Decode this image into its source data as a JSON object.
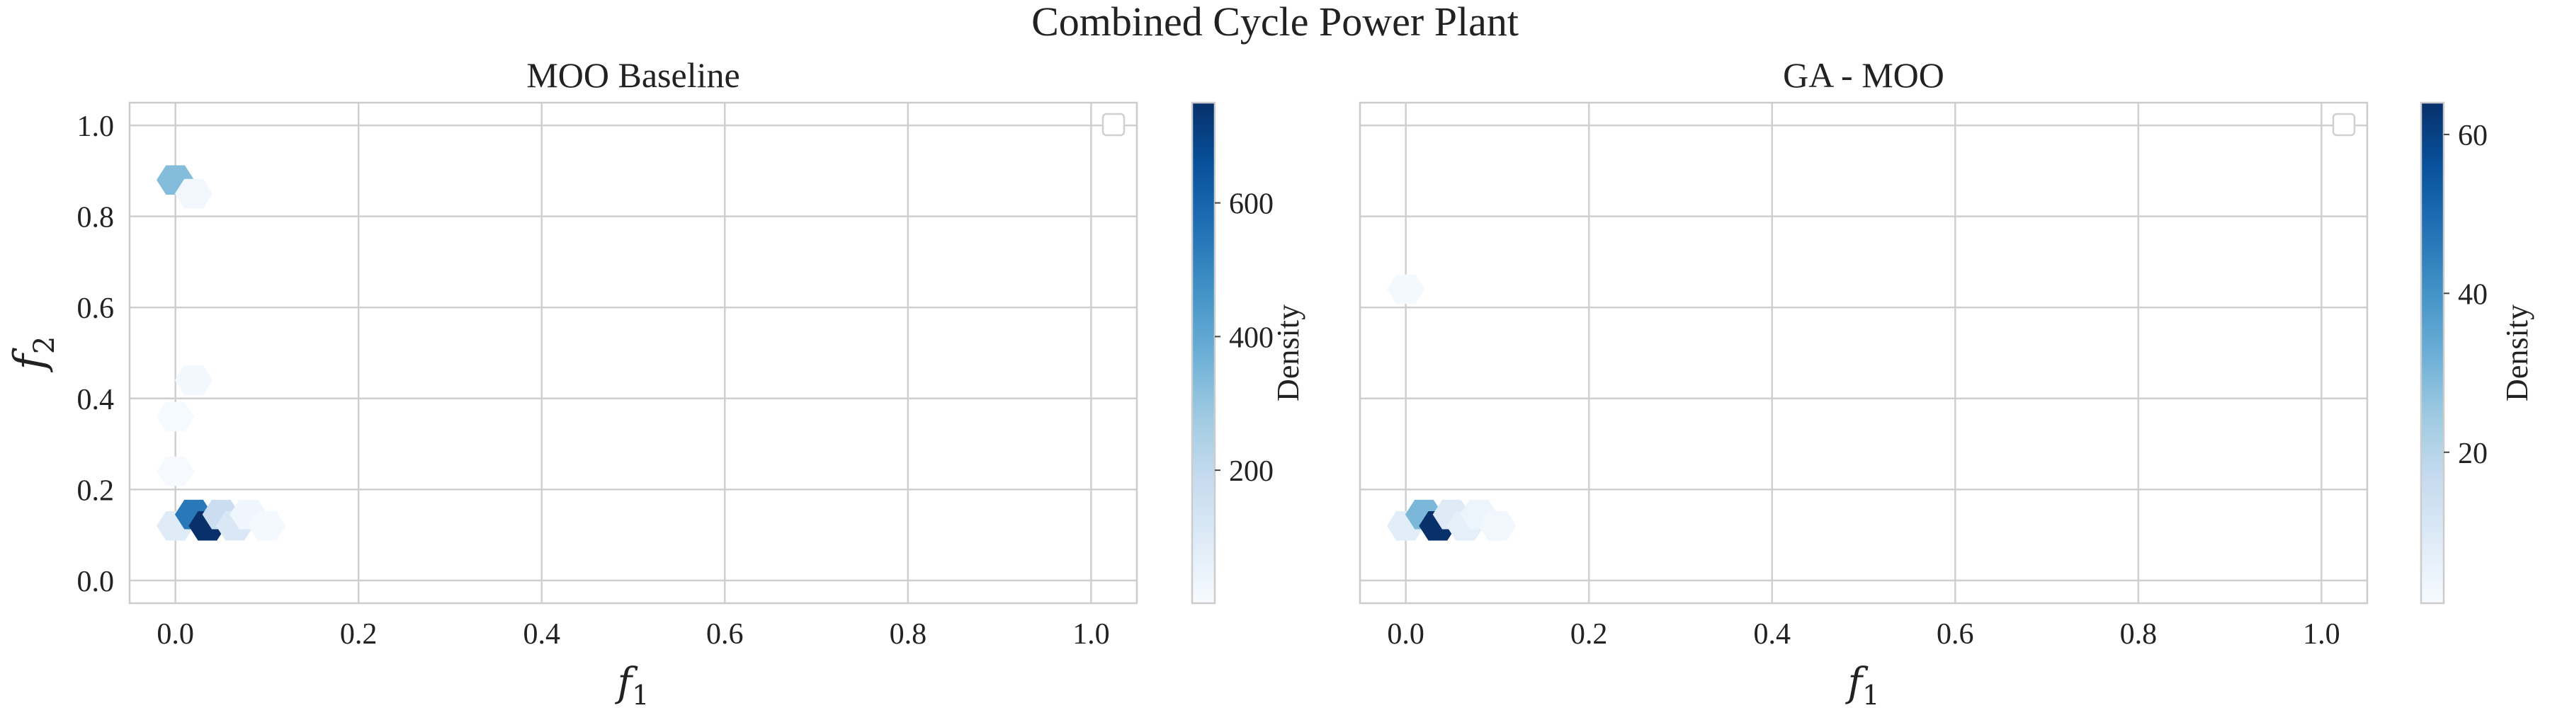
{
  "figure": {
    "suptitle": "Combined Cycle Power Plant"
  },
  "chart_data": [
    {
      "type": "hexbin",
      "title": "MOO Baseline",
      "xlabel": "f1",
      "ylabel": "f2",
      "xlim": [
        -0.05,
        1.05
      ],
      "ylim": [
        -0.05,
        1.05
      ],
      "xticks": [
        "0.0",
        "0.2",
        "0.4",
        "0.6",
        "0.8",
        "1.0"
      ],
      "yticks": [
        "0.0",
        "0.2",
        "0.4",
        "0.6",
        "0.8",
        "1.0"
      ],
      "grid": true,
      "legend": "top-right (empty)",
      "colormap": "Blues",
      "colorbar": {
        "label": "Density",
        "range": [
          1,
          750
        ],
        "ticks": [
          "200",
          "400",
          "600"
        ]
      },
      "bins": [
        {
          "x": 0.0,
          "y": 0.88,
          "count": 330
        },
        {
          "x": 0.02,
          "y": 0.85,
          "count": 25
        },
        {
          "x": 0.02,
          "y": 0.44,
          "count": 20
        },
        {
          "x": 0.0,
          "y": 0.36,
          "count": 8
        },
        {
          "x": 0.0,
          "y": 0.24,
          "count": 6
        },
        {
          "x": 0.0,
          "y": 0.12,
          "count": 90
        },
        {
          "x": 0.02,
          "y": 0.145,
          "count": 540
        },
        {
          "x": 0.035,
          "y": 0.12,
          "count": 750
        },
        {
          "x": 0.05,
          "y": 0.145,
          "count": 170
        },
        {
          "x": 0.065,
          "y": 0.12,
          "count": 110
        },
        {
          "x": 0.08,
          "y": 0.145,
          "count": 30
        },
        {
          "x": 0.1,
          "y": 0.12,
          "count": 15
        }
      ]
    },
    {
      "type": "hexbin",
      "title": "GA - MOO",
      "xlabel": "f1",
      "xlim": [
        -0.05,
        1.05
      ],
      "ylim": [
        -0.05,
        1.05
      ],
      "xticks": [
        "0.0",
        "0.2",
        "0.4",
        "0.6",
        "0.8",
        "1.0"
      ],
      "grid": true,
      "legend": "top-right (empty)",
      "colormap": "Blues",
      "colorbar": {
        "label": "Density",
        "range": [
          1,
          64
        ],
        "ticks": [
          "20",
          "40",
          "60"
        ]
      },
      "bins": [
        {
          "x": 0.0,
          "y": 0.64,
          "count": 2
        },
        {
          "x": 0.0,
          "y": 0.12,
          "count": 8
        },
        {
          "x": 0.02,
          "y": 0.145,
          "count": 30
        },
        {
          "x": 0.035,
          "y": 0.12,
          "count": 64
        },
        {
          "x": 0.05,
          "y": 0.145,
          "count": 9
        },
        {
          "x": 0.065,
          "y": 0.12,
          "count": 7
        },
        {
          "x": 0.08,
          "y": 0.145,
          "count": 4
        },
        {
          "x": 0.1,
          "y": 0.12,
          "count": 3
        }
      ]
    }
  ]
}
